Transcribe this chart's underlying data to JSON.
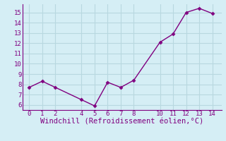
{
  "x": [
    0,
    1,
    2,
    4,
    5,
    6,
    7,
    8,
    10,
    11,
    12,
    13,
    14
  ],
  "y": [
    7.7,
    8.3,
    7.7,
    6.5,
    5.9,
    8.2,
    7.7,
    8.4,
    12.1,
    12.9,
    15.0,
    15.4,
    14.9
  ],
  "xlim": [
    -0.5,
    14.7
  ],
  "ylim": [
    5.5,
    15.8
  ],
  "xticks": [
    0,
    1,
    2,
    4,
    5,
    6,
    7,
    8,
    10,
    11,
    12,
    13,
    14
  ],
  "yticks": [
    6,
    7,
    8,
    9,
    10,
    11,
    12,
    13,
    14,
    15
  ],
  "xlabel": "Windchill (Refroidissement éolien,°C)",
  "line_color": "#800080",
  "marker": "D",
  "marker_size": 2.5,
  "bg_color": "#d5eef5",
  "grid_color": "#b8d8e0",
  "tick_label_color": "#800080",
  "xlabel_color": "#800080",
  "xlabel_fontsize": 7.5,
  "tick_fontsize": 6.5,
  "line_width": 1.0,
  "spine_color": "#800080"
}
